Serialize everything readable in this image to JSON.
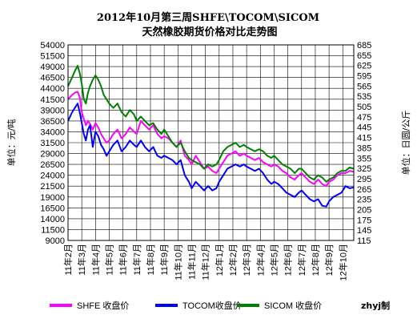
{
  "chart_data": {
    "type": "line",
    "title_line1": "2012年10月第三周SHFE\\TOCOM\\SICOM",
    "title_line2": "天然橡胶期货价格对比走势图",
    "ylabel_left": "单位：元/吨",
    "ylabel_right": "单位：日圆/公斤",
    "credit": "zhyj制",
    "ylim_left": [
      9000,
      54000
    ],
    "yticks_left": [
      9000,
      11500,
      14000,
      16500,
      19000,
      21500,
      24000,
      26500,
      29000,
      31500,
      34000,
      36500,
      39000,
      41500,
      44000,
      46500,
      49000,
      51500,
      54000
    ],
    "ylim_right": [
      115,
      685
    ],
    "yticks_right": [
      115,
      145,
      175,
      205,
      235,
      265,
      295,
      325,
      355,
      385,
      415,
      445,
      475,
      505,
      535,
      565,
      595,
      625,
      655,
      685
    ],
    "x_tick_labels": [
      "11年2月",
      "11年3月",
      "11年4月",
      "11年5月",
      "11年6月",
      "11年7月",
      "11年8月",
      "11年9月",
      "11年10月",
      "11年11月",
      "11年12月",
      "12年1月",
      "12年2月",
      "12年3月",
      "12年4月",
      "12年5月",
      "12年6月",
      "12年7月",
      "12年8月",
      "12年9月",
      "12年10月"
    ],
    "grid": true,
    "legend_position": "bottom",
    "series": [
      {
        "name": "SHFE 收盘价",
        "axis": "left",
        "color": "#ff00ff",
        "x": [
          0,
          0.3,
          0.5,
          0.7,
          0.85,
          1.0,
          1.15,
          1.3,
          1.45,
          1.6,
          1.8,
          2.0,
          2.2,
          2.4,
          2.6,
          2.8,
          3.0,
          3.3,
          3.6,
          3.9,
          4.2,
          4.5,
          4.8,
          5.0,
          5.3,
          5.6,
          5.9,
          6.2,
          6.5,
          6.8,
          7.0,
          7.3,
          7.6,
          7.9,
          8.2,
          8.5,
          8.8,
          9.0,
          9.3,
          9.6,
          9.9,
          10.2,
          10.5,
          10.8,
          11.0,
          11.3,
          11.6,
          11.9,
          12.2,
          12.5,
          12.8,
          13.0,
          13.3,
          13.6,
          13.9,
          14.2,
          14.5,
          14.8,
          15.0,
          15.3,
          15.6,
          15.9,
          16.2,
          16.5,
          16.8,
          17.0,
          17.3,
          17.6,
          17.9,
          18.2,
          18.5,
          18.8,
          19.0,
          19.3,
          19.6,
          19.9,
          20.2,
          20.5,
          20.8
        ],
        "y": [
          41500,
          42500,
          43000,
          43200,
          42000,
          38500,
          37000,
          35500,
          36500,
          35800,
          34500,
          36000,
          35000,
          33500,
          32500,
          31500,
          32000,
          33500,
          34500,
          32500,
          33500,
          35000,
          34000,
          33500,
          36500,
          35500,
          34500,
          35500,
          33500,
          32500,
          33000,
          32500,
          31500,
          30500,
          32000,
          28500,
          27500,
          26500,
          28500,
          27000,
          25500,
          26000,
          25000,
          24500,
          25500,
          27000,
          28500,
          29000,
          29500,
          28500,
          29000,
          28500,
          28000,
          27500,
          28000,
          27000,
          26500,
          26000,
          26500,
          26000,
          25000,
          24500,
          23500,
          23000,
          24000,
          24500,
          23500,
          22500,
          22000,
          23000,
          22000,
          21500,
          22500,
          23000,
          24000,
          24500,
          24500,
          25000,
          24800
        ]
      },
      {
        "name": "TOCOM收盘价",
        "axis": "left",
        "color": "#0000ff",
        "x": [
          0,
          0.3,
          0.5,
          0.7,
          0.85,
          1.0,
          1.15,
          1.3,
          1.45,
          1.6,
          1.8,
          2.0,
          2.2,
          2.4,
          2.6,
          2.8,
          3.0,
          3.3,
          3.6,
          3.9,
          4.2,
          4.5,
          4.8,
          5.0,
          5.3,
          5.6,
          5.9,
          6.2,
          6.5,
          6.8,
          7.0,
          7.3,
          7.6,
          7.9,
          8.2,
          8.5,
          8.8,
          9.0,
          9.3,
          9.6,
          9.9,
          10.2,
          10.5,
          10.8,
          11.0,
          11.3,
          11.6,
          11.9,
          12.2,
          12.5,
          12.8,
          13.0,
          13.3,
          13.6,
          13.9,
          14.2,
          14.5,
          14.8,
          15.0,
          15.3,
          15.6,
          15.9,
          16.2,
          16.5,
          16.8,
          17.0,
          17.3,
          17.6,
          17.9,
          18.2,
          18.5,
          18.8,
          19.0,
          19.3,
          19.6,
          19.9,
          20.2,
          20.5,
          20.8
        ],
        "y": [
          36500,
          38500,
          39500,
          40500,
          38500,
          36000,
          33500,
          32000,
          34500,
          35500,
          30500,
          34000,
          33000,
          31000,
          30000,
          28500,
          29500,
          31000,
          32000,
          29500,
          30500,
          32000,
          31000,
          30500,
          32000,
          30500,
          29500,
          30500,
          28500,
          28000,
          28500,
          28000,
          27500,
          26500,
          27500,
          24000,
          22500,
          21000,
          22500,
          21500,
          20500,
          21500,
          20500,
          21000,
          22500,
          24000,
          25500,
          26000,
          26500,
          26000,
          26500,
          26000,
          25500,
          25000,
          25500,
          24500,
          23000,
          22000,
          22500,
          22000,
          21000,
          20000,
          19500,
          19000,
          20000,
          20500,
          19500,
          18500,
          18000,
          18500,
          17000,
          16800,
          18000,
          19000,
          19500,
          20000,
          21500,
          21000,
          21200
        ]
      },
      {
        "name": "SICOM 收盘价",
        "axis": "left",
        "color": "#008000",
        "x": [
          0,
          0.3,
          0.5,
          0.7,
          0.85,
          1.0,
          1.15,
          1.3,
          1.45,
          1.6,
          1.8,
          2.0,
          2.2,
          2.4,
          2.6,
          2.8,
          3.0,
          3.3,
          3.6,
          3.9,
          4.2,
          4.5,
          4.8,
          5.0,
          5.3,
          5.6,
          5.9,
          6.2,
          6.5,
          6.8,
          7.0,
          7.3,
          7.6,
          7.9,
          8.2,
          8.5,
          8.8,
          9.0,
          9.3,
          9.6,
          9.9,
          10.2,
          10.5,
          10.8,
          11.0,
          11.3,
          11.6,
          11.9,
          12.2,
          12.5,
          12.8,
          13.0,
          13.3,
          13.6,
          13.9,
          14.2,
          14.5,
          14.8,
          15.0,
          15.3,
          15.6,
          15.9,
          16.2,
          16.5,
          16.8,
          17.0,
          17.3,
          17.6,
          17.9,
          18.2,
          18.5,
          18.8,
          19.0,
          19.3,
          19.6,
          19.9,
          20.2,
          20.5,
          20.8
        ],
        "y": [
          44500,
          46500,
          48000,
          49200,
          47500,
          45000,
          41500,
          40500,
          43000,
          44500,
          46000,
          47000,
          46000,
          44500,
          42500,
          41500,
          40500,
          39500,
          40500,
          38500,
          37500,
          39000,
          38000,
          36500,
          37500,
          36500,
          35500,
          36000,
          34500,
          33500,
          34500,
          33000,
          31500,
          30500,
          31500,
          29500,
          28000,
          27500,
          27000,
          26500,
          25500,
          26500,
          26000,
          26500,
          27500,
          29500,
          30500,
          31000,
          31500,
          30500,
          31000,
          30500,
          30000,
          29500,
          30000,
          29500,
          28500,
          28000,
          28500,
          27500,
          26500,
          26000,
          25500,
          24500,
          25500,
          25500,
          24500,
          23500,
          23000,
          24000,
          23500,
          22500,
          23000,
          23500,
          24500,
          25000,
          25000,
          25800,
          25500
        ]
      }
    ]
  }
}
